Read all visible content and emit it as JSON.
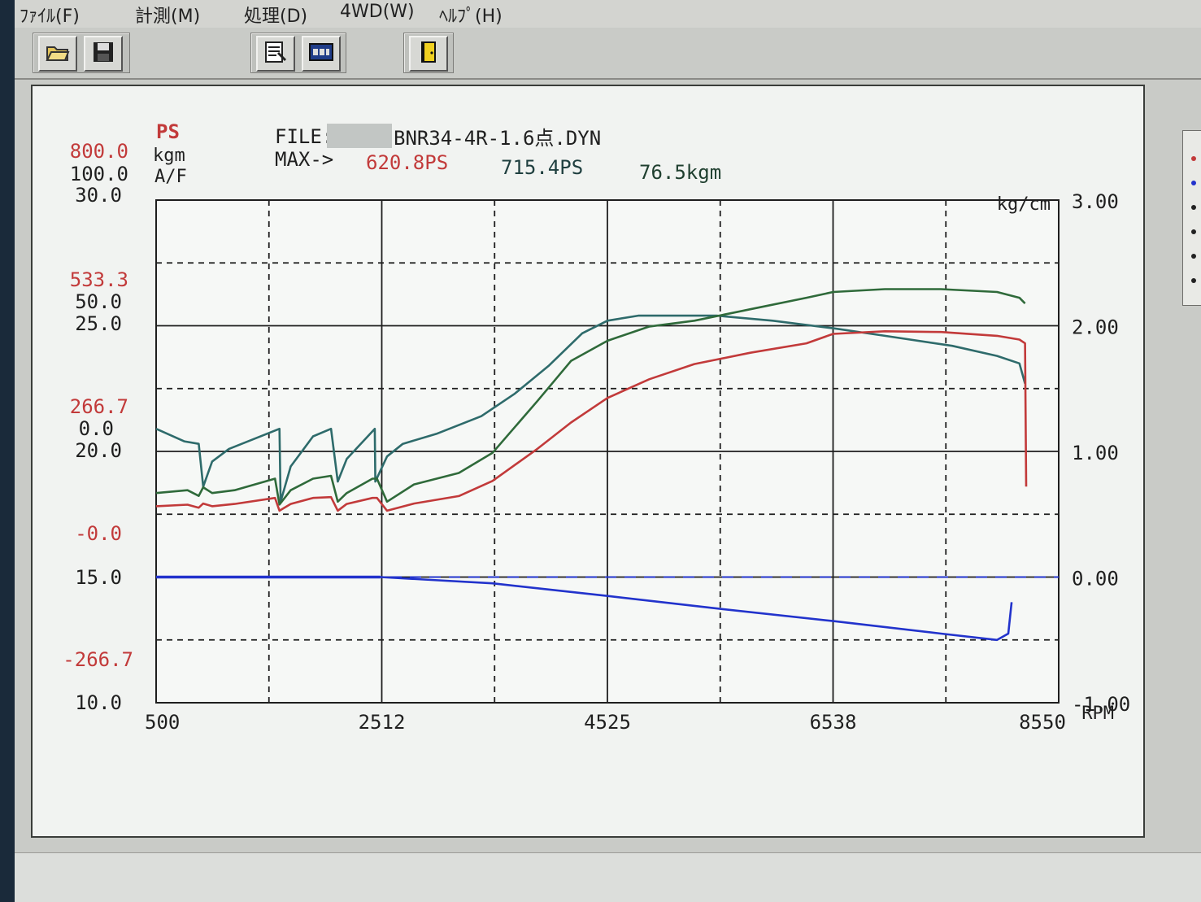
{
  "menu": [
    {
      "label": "ﾌｧｲﾙ(F)"
    },
    {
      "label": "計測(M)"
    },
    {
      "label": "処理(D)"
    },
    {
      "label": "4WD(W)"
    },
    {
      "label": "ﾍﾙﾌﾟ(H)"
    }
  ],
  "toolbar": {
    "buttons": [
      {
        "icon": "open-folder-icon"
      },
      {
        "icon": "save-disk-icon"
      },
      {
        "icon": "process-icon"
      },
      {
        "icon": "display-icon"
      },
      {
        "icon": "exit-door-icon"
      }
    ]
  },
  "header": {
    "units": {
      "ps": "PS",
      "kgm": "kgm",
      "af": "A/F"
    },
    "file_label": "FILE:",
    "file_name": "BNR34-4R-1.6点.DYN",
    "max_label": "MAX->",
    "max_ps_wheel": "620.8PS",
    "max_ps_engine": "715.4PS",
    "max_torque": "76.5kgm"
  },
  "axes": {
    "left_ps": [
      "800.0",
      "533.3",
      "266.7",
      "-0.0",
      "-266.7"
    ],
    "left_kgm": [
      "100.0",
      "50.0",
      "0.0"
    ],
    "left_af": [
      "30.0",
      "25.0",
      "20.0",
      "15.0",
      "10.0"
    ],
    "right_unit": "kg/cm",
    "right_ticks": [
      "3.00",
      "2.00",
      "1.00",
      "0.00",
      "-1.00"
    ],
    "x_ticks": [
      "500",
      "2512",
      "4525",
      "6538",
      "8550"
    ],
    "x_unit": "RPM"
  },
  "colors": {
    "ps": "#c23a3a",
    "torque": "#2f6a3a",
    "af": "#2e6b6b",
    "boost": "#2233cc",
    "grid": "#1e1e1e"
  },
  "chart_data": {
    "type": "line",
    "x_range": [
      500,
      8550
    ],
    "series": [
      {
        "key": "af",
        "axis": "af",
        "ylim": [
          10,
          30
        ],
        "x": [
          500,
          750,
          880,
          920,
          1000,
          1150,
          1600,
          1610,
          1700,
          1900,
          2060,
          2120,
          2200,
          2450,
          2455,
          2560,
          2700,
          3000,
          3400,
          3700,
          4000,
          4300,
          4525,
          4800,
          5500,
          6000,
          6538,
          7000,
          7600,
          8000,
          8200,
          8250
        ],
        "values": [
          20.9,
          20.4,
          20.3,
          18.6,
          19.6,
          20.1,
          20.9,
          18.0,
          19.4,
          20.6,
          20.9,
          18.8,
          19.7,
          20.9,
          18.8,
          19.8,
          20.3,
          20.7,
          21.4,
          22.3,
          23.4,
          24.7,
          25.2,
          25.4,
          25.4,
          25.2,
          24.9,
          24.6,
          24.2,
          23.8,
          23.5,
          22.7
        ]
      },
      {
        "key": "torque",
        "axis": "kgm",
        "ylim": [
          -75,
          100
        ],
        "x": [
          500,
          780,
          880,
          920,
          1000,
          1200,
          1560,
          1600,
          1700,
          1900,
          2060,
          2120,
          2200,
          2430,
          2470,
          2560,
          2800,
          3200,
          3500,
          3900,
          4200,
          4525,
          4900,
          5300,
          5800,
          6300,
          6538,
          7000,
          7500,
          8000,
          8200,
          8250
        ],
        "values": [
          -2,
          -1,
          -3,
          0,
          -2,
          -1,
          3,
          -6,
          -1,
          3,
          4,
          -5,
          -2,
          3,
          3,
          -5,
          1,
          5,
          12,
          30,
          44,
          51,
          56,
          58,
          62,
          66,
          68,
          69,
          69,
          68,
          66,
          64
        ]
      },
      {
        "key": "ps",
        "axis": "ps",
        "ylim": [
          -533.3,
          800
        ],
        "x": [
          500,
          780,
          880,
          920,
          1000,
          1200,
          1560,
          1600,
          1700,
          1900,
          2060,
          2120,
          2200,
          2430,
          2470,
          2560,
          2800,
          3200,
          3500,
          3900,
          4200,
          4525,
          4900,
          5300,
          5800,
          6300,
          6538,
          7000,
          7500,
          8000,
          8200,
          8250,
          8260
        ],
        "values": [
          -12,
          -8,
          -16,
          -5,
          -12,
          -6,
          10,
          -24,
          -6,
          10,
          12,
          -24,
          -6,
          10,
          10,
          -24,
          -5,
          15,
          55,
          140,
          210,
          275,
          325,
          365,
          395,
          420,
          445,
          452,
          450,
          440,
          430,
          420,
          40
        ]
      },
      {
        "key": "boost",
        "axis": "boost",
        "ylim": [
          -1,
          3
        ],
        "x": [
          500,
          2500,
          3500,
          4525,
          5500,
          6538,
          7500,
          8000,
          8100,
          8130
        ],
        "values": [
          0.0,
          0.0,
          -0.05,
          -0.15,
          -0.25,
          -0.35,
          -0.45,
          -0.5,
          -0.45,
          -0.2
        ]
      }
    ]
  }
}
